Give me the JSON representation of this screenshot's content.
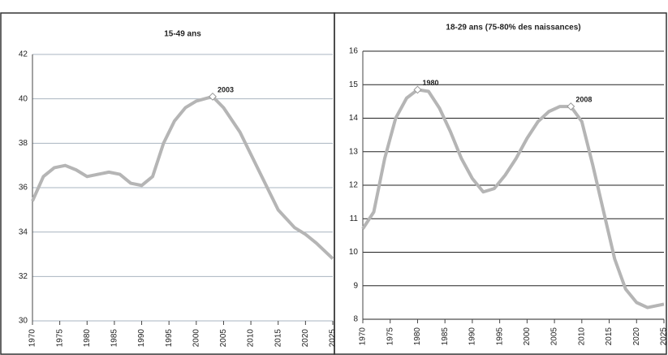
{
  "chart_data": [
    {
      "type": "line",
      "title": "15-49 ans",
      "color": "#b5b5b5",
      "grid": true,
      "grid_color": "#aab4c0",
      "x": [
        1970,
        1972,
        1974,
        1976,
        1978,
        1980,
        1982,
        1984,
        1986,
        1988,
        1990,
        1992,
        1994,
        1996,
        1998,
        2000,
        2003,
        2005,
        2008,
        2010,
        2012,
        2015,
        2018,
        2020,
        2022,
        2025
      ],
      "values": [
        35.4,
        36.5,
        36.9,
        37.0,
        36.8,
        36.5,
        36.6,
        36.7,
        36.6,
        36.2,
        36.1,
        36.5,
        38.0,
        39.0,
        39.6,
        39.9,
        40.1,
        39.6,
        38.5,
        37.5,
        36.5,
        35.0,
        34.2,
        33.9,
        33.5,
        32.8
      ],
      "xlim": [
        1970,
        2025
      ],
      "xticks": [
        1970,
        1975,
        1980,
        1985,
        1990,
        1995,
        2000,
        2005,
        2010,
        2015,
        2020,
        2025
      ],
      "ylim": [
        30,
        42
      ],
      "yticks": [
        30,
        32,
        34,
        36,
        38,
        40,
        42
      ],
      "annotations": [
        {
          "label": "2003",
          "x": 2003,
          "y": 40.1
        }
      ]
    },
    {
      "type": "line",
      "title": "18-29 ans (75-80% des naissances)",
      "color": "#b5b5b5",
      "grid": true,
      "grid_color": "#222222",
      "x": [
        1970,
        1972,
        1974,
        1976,
        1978,
        1980,
        1982,
        1984,
        1986,
        1988,
        1990,
        1992,
        1994,
        1996,
        1998,
        2000,
        2002,
        2004,
        2006,
        2008,
        2010,
        2012,
        2014,
        2016,
        2018,
        2020,
        2022,
        2025
      ],
      "values": [
        10.7,
        11.2,
        12.8,
        14.0,
        14.6,
        14.85,
        14.8,
        14.3,
        13.6,
        12.8,
        12.2,
        11.8,
        11.9,
        12.3,
        12.8,
        13.4,
        13.9,
        14.2,
        14.35,
        14.35,
        13.9,
        12.6,
        11.2,
        9.8,
        8.9,
        8.5,
        8.35,
        8.45
      ],
      "xlim": [
        1970,
        2025
      ],
      "xticks": [
        1970,
        1975,
        1980,
        1985,
        1990,
        1995,
        2000,
        2005,
        2010,
        2015,
        2020,
        2025
      ],
      "ylim": [
        8,
        16
      ],
      "yticks": [
        8,
        9,
        10,
        11,
        12,
        13,
        14,
        15,
        16
      ],
      "annotations": [
        {
          "label": "1980",
          "x": 1980,
          "y": 14.85
        },
        {
          "label": "2008",
          "x": 2008,
          "y": 14.35
        }
      ]
    }
  ]
}
